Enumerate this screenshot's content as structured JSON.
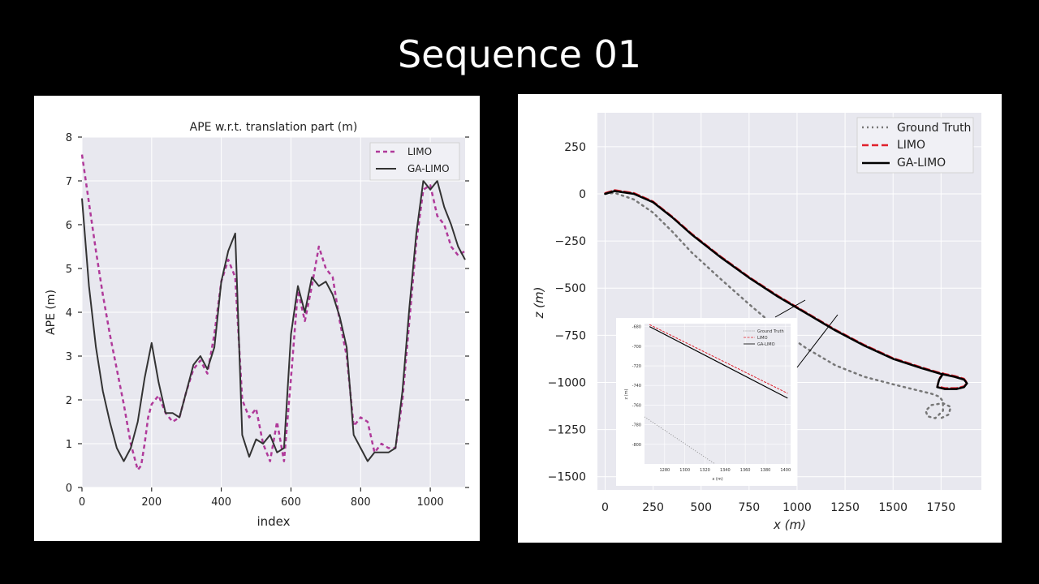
{
  "slide": {
    "title": "Sequence 01"
  },
  "colors": {
    "background": "#000000",
    "limo_ape": "#b03a9a",
    "ga_limo_ape": "#333333",
    "ground_truth": "#777777",
    "limo_traj": "#e0202c",
    "ga_limo_traj": "#000000",
    "plot_bg": "#e8e8ef"
  },
  "chart_data": [
    {
      "type": "line",
      "title": "APE w.r.t. translation part (m)",
      "xlabel": "index",
      "ylabel": "APE (m)",
      "xlim": [
        0,
        1100
      ],
      "ylim": [
        0,
        8
      ],
      "xticks": [
        "0",
        "200",
        "400",
        "600",
        "800",
        "1000"
      ],
      "yticks": [
        "0",
        "1",
        "2",
        "3",
        "4",
        "5",
        "6",
        "7",
        "8"
      ],
      "grid": true,
      "legend": "top-right",
      "series": [
        {
          "name": "LIMO",
          "style": "dashed",
          "x": [
            0,
            20,
            40,
            60,
            80,
            100,
            120,
            140,
            160,
            170,
            180,
            190,
            200,
            220,
            240,
            260,
            280,
            300,
            320,
            340,
            360,
            380,
            400,
            420,
            440,
            460,
            480,
            500,
            520,
            540,
            560,
            580,
            600,
            620,
            640,
            660,
            680,
            700,
            720,
            740,
            760,
            780,
            800,
            820,
            840,
            860,
            880,
            900,
            920,
            940,
            960,
            980,
            1000,
            1020,
            1040,
            1060,
            1080,
            1100
          ],
          "y": [
            7.6,
            6.5,
            5.4,
            4.4,
            3.5,
            2.7,
            1.9,
            1.0,
            0.4,
            0.5,
            1.0,
            1.6,
            1.9,
            2.1,
            1.7,
            1.5,
            1.6,
            2.2,
            2.7,
            2.9,
            2.6,
            3.5,
            4.7,
            5.2,
            4.8,
            2.0,
            1.6,
            1.8,
            1.0,
            0.6,
            1.5,
            0.6,
            2.5,
            4.5,
            3.8,
            4.6,
            5.5,
            5.0,
            4.8,
            3.8,
            3.0,
            1.4,
            1.6,
            1.5,
            0.8,
            1.0,
            0.9,
            0.9,
            2.0,
            3.8,
            5.6,
            6.8,
            6.9,
            6.2,
            6.0,
            5.5,
            5.3,
            5.4
          ]
        },
        {
          "name": "GA-LIMO",
          "style": "solid",
          "x": [
            0,
            20,
            40,
            60,
            80,
            100,
            120,
            140,
            160,
            180,
            200,
            220,
            240,
            260,
            280,
            300,
            320,
            340,
            360,
            380,
            400,
            420,
            440,
            460,
            480,
            500,
            520,
            540,
            560,
            580,
            600,
            620,
            640,
            660,
            680,
            700,
            720,
            740,
            760,
            780,
            800,
            820,
            840,
            860,
            880,
            900,
            920,
            940,
            960,
            980,
            1000,
            1020,
            1040,
            1060,
            1080,
            1100
          ],
          "y": [
            6.6,
            4.6,
            3.2,
            2.2,
            1.5,
            0.9,
            0.6,
            0.9,
            1.5,
            2.5,
            3.3,
            2.4,
            1.7,
            1.7,
            1.6,
            2.2,
            2.8,
            3.0,
            2.7,
            3.2,
            4.7,
            5.4,
            5.8,
            1.2,
            0.7,
            1.1,
            1.0,
            1.2,
            0.8,
            0.9,
            3.5,
            4.6,
            4.0,
            4.8,
            4.6,
            4.7,
            4.4,
            3.9,
            3.2,
            1.2,
            0.9,
            0.6,
            0.8,
            0.8,
            0.8,
            0.9,
            2.2,
            4.1,
            5.8,
            7.0,
            6.8,
            7.0,
            6.4,
            6.0,
            5.5,
            5.2
          ]
        }
      ]
    },
    {
      "type": "line",
      "title": "",
      "xlabel": "x (m)",
      "ylabel": "z (m)",
      "xlim": [
        -40,
        1960
      ],
      "ylim": [
        -1570,
        430
      ],
      "xticks": [
        "0",
        "250",
        "500",
        "750",
        "1000",
        "1250",
        "1500",
        "1750"
      ],
      "yticks": [
        "250",
        "0",
        "−250",
        "−500",
        "−750",
        "−1000",
        "−1250",
        "−1500"
      ],
      "grid": true,
      "legend": "top-right",
      "series": [
        {
          "name": "Ground Truth",
          "style": "dotted",
          "x": [
            0,
            50,
            150,
            250,
            350,
            450,
            600,
            750,
            900,
            1050,
            1200,
            1350,
            1500,
            1620,
            1700,
            1740,
            1760,
            1760,
            1720,
            1680,
            1670,
            1700,
            1760,
            1800,
            1790,
            1750
          ],
          "y": [
            0,
            5,
            -30,
            -100,
            -200,
            -310,
            -450,
            -585,
            -715,
            -820,
            -910,
            -970,
            -1010,
            -1040,
            -1060,
            -1075,
            -1100,
            -1150,
            -1190,
            -1180,
            -1150,
            -1120,
            -1110,
            -1130,
            -1170,
            -1190
          ]
        },
        {
          "name": "LIMO",
          "style": "dashed",
          "x": [
            0,
            50,
            150,
            250,
            350,
            450,
            600,
            750,
            900,
            1050,
            1200,
            1350,
            1500,
            1650,
            1750,
            1820,
            1870,
            1885,
            1870,
            1830,
            1770,
            1730,
            1740,
            1760
          ],
          "y": [
            5,
            20,
            5,
            -40,
            -120,
            -210,
            -330,
            -440,
            -540,
            -630,
            -720,
            -800,
            -870,
            -920,
            -950,
            -965,
            -980,
            -1000,
            -1020,
            -1030,
            -1030,
            -1020,
            -980,
            -950
          ]
        },
        {
          "name": "GA-LIMO",
          "style": "solid",
          "x": [
            0,
            50,
            150,
            250,
            350,
            450,
            600,
            750,
            900,
            1050,
            1200,
            1350,
            1500,
            1650,
            1750,
            1820,
            1870,
            1885,
            1870,
            1830,
            1770,
            1730,
            1740,
            1760
          ],
          "y": [
            0,
            15,
            0,
            -45,
            -125,
            -215,
            -335,
            -445,
            -545,
            -635,
            -725,
            -805,
            -875,
            -925,
            -955,
            -970,
            -985,
            -1005,
            -1025,
            -1035,
            -1035,
            -1025,
            -985,
            -955
          ]
        }
      ],
      "inset": {
        "xlim": [
          1260,
          1405
        ],
        "ylim": [
          -820,
          -677
        ],
        "xticks": [
          "1280",
          "1300",
          "1320",
          "1340",
          "1360",
          "1380",
          "1400"
        ],
        "yticks": [
          "-680",
          "-700",
          "-720",
          "-740",
          "-760",
          "-780",
          "-800"
        ],
        "xlabel": "x (m)",
        "ylabel": "z (m)",
        "legend": [
          "Ground Truth",
          "LIMO",
          "GA-LIMO"
        ],
        "series": [
          {
            "name": "Ground Truth",
            "style": "dotted",
            "x": [
              1260,
              1330
            ],
            "y": [
              -772,
              -820
            ]
          },
          {
            "name": "LIMO",
            "style": "dashed",
            "x": [
              1265,
              1402
            ],
            "y": [
              -678,
              -748
            ]
          },
          {
            "name": "GA-LIMO",
            "style": "solid",
            "x": [
              1265,
              1402
            ],
            "y": [
              -680,
              -753
            ]
          }
        ]
      }
    }
  ]
}
